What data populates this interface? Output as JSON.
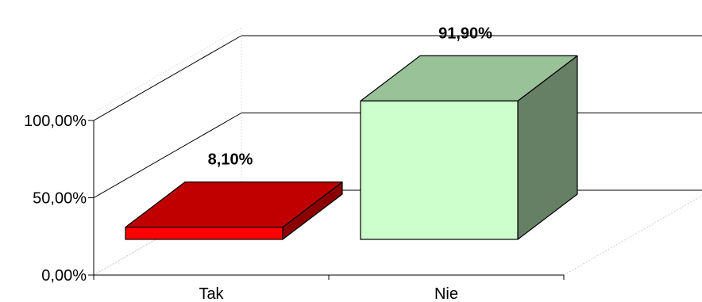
{
  "chart_data": {
    "type": "bar",
    "three_d": true,
    "categories": [
      "Tak",
      "Nie"
    ],
    "values": [
      8.1,
      91.9
    ],
    "data_labels": [
      "8,10%",
      "91,90%"
    ],
    "title": "",
    "xlabel": "",
    "ylabel": "",
    "ylim": [
      0,
      100
    ],
    "yticks": [
      {
        "value": 0,
        "label": "0,00%"
      },
      {
        "value": 50,
        "label": "50,00%"
      },
      {
        "value": 100,
        "label": "100,00%"
      }
    ],
    "grid": true,
    "legend": "none",
    "colors": [
      {
        "front": "#ff0000",
        "top": "#c00000",
        "side": "#8b0000"
      },
      {
        "front": "#ccffcc",
        "top": "#99c299",
        "side": "#668066"
      }
    ]
  }
}
